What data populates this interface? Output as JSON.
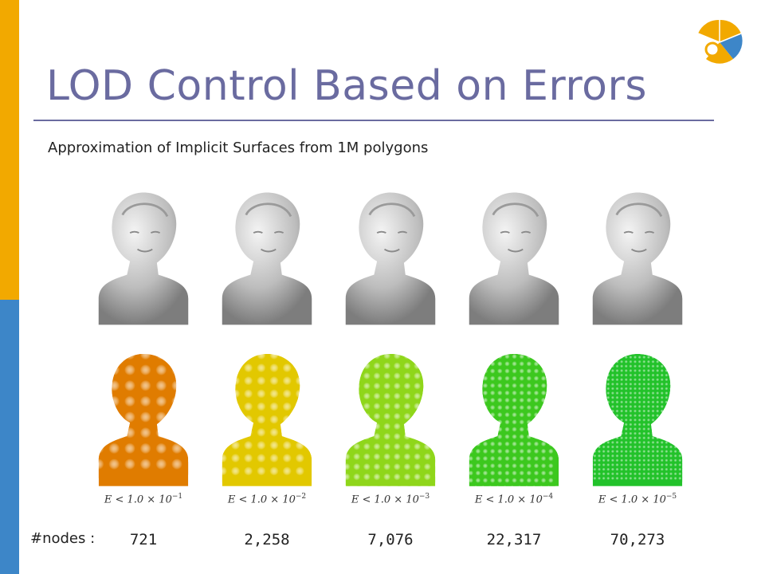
{
  "slide": {
    "title": "LOD Control Based on Errors",
    "subtitle": "Approximation of Implicit Surfaces from 1M polygons",
    "nodes_label": "#nodes :"
  },
  "colors": {
    "title": "#6a6ba0",
    "bar_top": "#f2a900",
    "bar_bottom": "#3d86c8"
  },
  "levels": [
    {
      "error_text": "E < 1.0 × 10",
      "exponent": "−1",
      "nodes": "721",
      "blob_color": "#e07c00",
      "icon": "orange-sphere-cluster"
    },
    {
      "error_text": "E < 1.0 × 10",
      "exponent": "−2",
      "nodes": "2,258",
      "blob_color": "#e2c800",
      "icon": "yellow-sphere-cluster"
    },
    {
      "error_text": "E < 1.0 × 10",
      "exponent": "−3",
      "nodes": "7,076",
      "blob_color": "#8fd61a",
      "icon": "light-green-sphere-cluster"
    },
    {
      "error_text": "E < 1.0 × 10",
      "exponent": "−4",
      "nodes": "22,317",
      "blob_color": "#3cc81e",
      "icon": "green-sphere-cluster"
    },
    {
      "error_text": "E < 1.0 × 10",
      "exponent": "−5",
      "nodes": "70,273",
      "blob_color": "#22c22a",
      "icon": "bright-green-sphere-cluster"
    }
  ]
}
